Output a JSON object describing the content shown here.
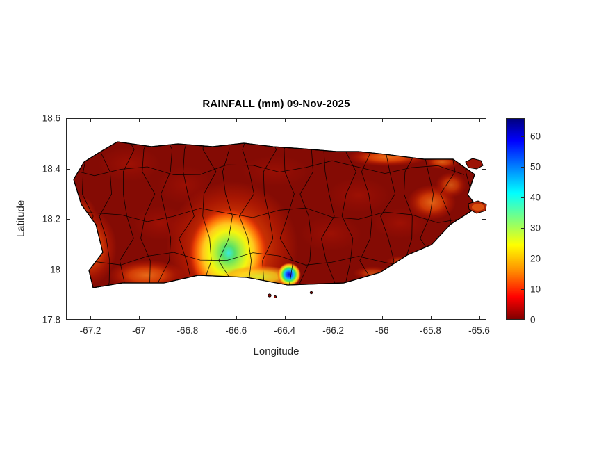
{
  "figure": {
    "title": "RAINFALL (mm) 09-Nov-2025",
    "xlabel": "Longitude",
    "ylabel": "Latitude",
    "xtick_labels": [
      "-67.2",
      "-67",
      "-66.8",
      "-66.6",
      "-66.4",
      "-66.2",
      "-66",
      "-65.8",
      "-65.6"
    ],
    "ytick_labels": [
      "17.8",
      "18",
      "18.2",
      "18.4",
      "18.6"
    ],
    "colorbar_tick_labels": [
      "0",
      "10",
      "20",
      "30",
      "40",
      "50",
      "60"
    ],
    "accent_colors": {
      "background_rain": "#840b04",
      "peak_blue": "#00008f",
      "boundary": "#000000",
      "axis": "#262626"
    }
  },
  "chart_data": {
    "type": "heatmap",
    "title": "RAINFALL (mm) 09-Nov-2025",
    "xlabel": "Longitude",
    "ylabel": "Latitude",
    "xlim": [
      -67.3,
      -65.57
    ],
    "ylim": [
      17.8,
      18.6
    ],
    "xticks": [
      -67.2,
      -67,
      -66.8,
      -66.6,
      -66.4,
      -66.2,
      -66,
      -65.8,
      -65.6
    ],
    "yticks": [
      17.8,
      18,
      18.2,
      18.4,
      18.6
    ],
    "region": "Puerto Rico filled-contour rainfall map with municipal boundaries overlaid in black",
    "units": "mm",
    "date": "09-Nov-2025",
    "grid": false,
    "colorbar": {
      "range": [
        0,
        66
      ],
      "ticks": [
        0,
        10,
        20,
        30,
        40,
        50,
        60
      ],
      "orientation": "vertical",
      "position": "right",
      "colormap": "jet reversed (0 = dark red, max = dark blue)",
      "stops": [
        [
          "0%",
          "#7f0000"
        ],
        [
          "11%",
          "#ff0000"
        ],
        [
          "24%",
          "#ff8c00"
        ],
        [
          "37%",
          "#ffff00"
        ],
        [
          "50%",
          "#7dff7d"
        ],
        [
          "63%",
          "#00ffff"
        ],
        [
          "76%",
          "#0080ff"
        ],
        [
          "89%",
          "#0000ff"
        ],
        [
          "100%",
          "#00007f"
        ]
      ]
    },
    "features": [
      {
        "area": "most municipalities across the island",
        "rainfall_mm": "0-5 (dark red)"
      },
      {
        "area": "south-central maximum (Ponce / Juana Diaz area)",
        "center_lon": -66.62,
        "center_lat": 18.03,
        "peak_mm": 45
      },
      {
        "area": "localized intense south-coast cell",
        "center_lon": -66.43,
        "center_lat": 17.97,
        "peak_mm": 65
      },
      {
        "area": "northeast coastal orange band",
        "center_lon": -65.97,
        "center_lat": 18.43,
        "peak_mm": 15
      },
      {
        "area": "west / southwest coastal strip",
        "center_lon": -67.12,
        "center_lat": 18.02,
        "peak_mm": 12
      },
      {
        "area": "eastern interior patches",
        "center_lon": -65.78,
        "center_lat": 18.2,
        "peak_mm": 15
      }
    ]
  }
}
